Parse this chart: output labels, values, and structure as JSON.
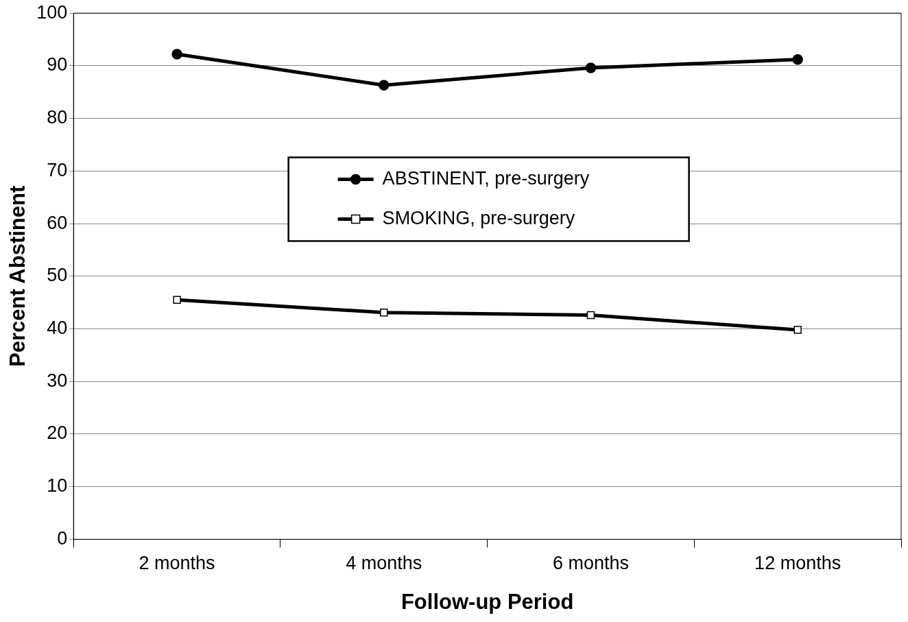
{
  "chart_data": {
    "type": "line",
    "xlabel": "Follow-up Period",
    "ylabel": "Percent Abstinent",
    "categories": [
      "2 months",
      "4 months",
      "6 months",
      "12 months"
    ],
    "series": [
      {
        "name": "ABSTINENT, pre-surgery",
        "color": "#000000",
        "marker": "circle",
        "values": [
          92.2,
          86.3,
          89.6,
          91.2
        ]
      },
      {
        "name": "SMOKING, pre-surgery",
        "color": "#000000",
        "marker": "square",
        "values": [
          45.5,
          43.1,
          42.6,
          39.8
        ]
      }
    ],
    "ylim": [
      0,
      100
    ],
    "yticks": [
      0,
      10,
      20,
      30,
      40,
      50,
      60,
      70,
      80,
      90,
      100
    ],
    "grid": "y",
    "legend": "top",
    "line_style": "solid"
  }
}
